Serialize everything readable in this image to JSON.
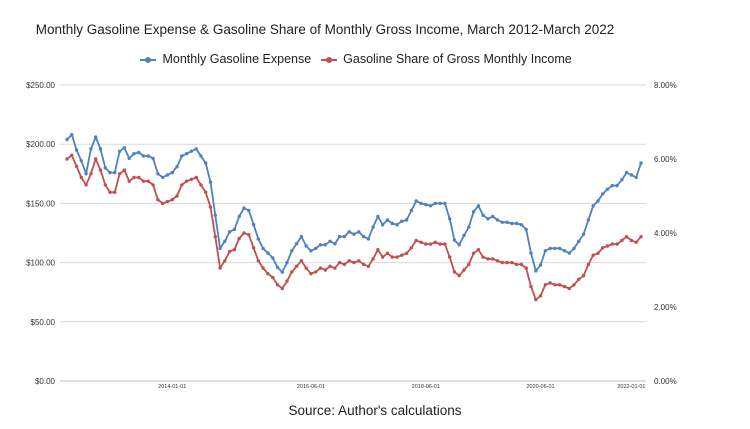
{
  "chart_data": {
    "type": "line",
    "title": "Monthly Gasoline Expense & Gasoline Share of Monthly Gross Income, March 2012-March 2022",
    "source": "Source: Author's calculations",
    "y_left_ticks": [
      "$0.00",
      "$50.00",
      "$100.00",
      "$150.00",
      "$200.00",
      "$250.00"
    ],
    "y_right_ticks": [
      "0.00%",
      "2.00%",
      "4.00%",
      "6.00%",
      "8.00%"
    ],
    "ylim_left": [
      0,
      250
    ],
    "ylim_right": [
      0,
      8
    ],
    "x_ticks": [
      {
        "label": "2014-01-01",
        "index": 22
      },
      {
        "label": "2016-06-01",
        "index": 51
      },
      {
        "label": "2018-06-01",
        "index": 75
      },
      {
        "label": "2020-06-01",
        "index": 99
      },
      {
        "label": "2022-01-01",
        "index": 118
      }
    ],
    "x_range": {
      "start": "2012-03",
      "end": "2022-03",
      "count": 121
    },
    "legend_position": "top",
    "grid": true,
    "series": [
      {
        "name": "Monthly Gasoline Expense",
        "axis": "left",
        "color": "#4f81bd",
        "values": [
          204,
          208,
          195,
          186,
          175,
          196,
          206,
          196,
          180,
          176,
          176,
          194,
          197,
          188,
          192,
          193,
          190,
          190,
          188,
          175,
          172,
          174,
          176,
          181,
          190,
          192,
          194,
          196,
          190,
          184,
          168,
          140,
          112,
          118,
          126,
          128,
          139,
          146,
          144,
          132,
          120,
          112,
          108,
          104,
          96,
          92,
          100,
          110,
          116,
          122,
          114,
          110,
          112,
          115,
          115,
          118,
          116,
          122,
          122,
          126,
          124,
          126,
          122,
          120,
          130,
          139,
          132,
          136,
          133,
          132,
          135,
          136,
          144,
          152,
          150,
          149,
          148,
          150,
          150,
          150,
          137,
          119,
          115,
          123,
          130,
          143,
          148,
          140,
          137,
          139,
          136,
          134,
          134,
          133,
          133,
          132,
          128,
          108,
          93,
          98,
          110,
          112,
          112,
          112,
          110,
          108,
          112,
          118,
          124,
          136,
          148,
          152,
          158,
          162,
          165,
          165,
          170,
          176,
          174,
          172,
          184
        ]
      },
      {
        "name": "Gasoline Share of Gross Monthly Income",
        "axis": "right",
        "color": "#c0504d",
        "values": [
          6.0,
          6.1,
          5.8,
          5.5,
          5.3,
          5.6,
          6.0,
          5.7,
          5.3,
          5.1,
          5.1,
          5.6,
          5.7,
          5.4,
          5.5,
          5.5,
          5.4,
          5.4,
          5.3,
          4.9,
          4.8,
          4.85,
          4.9,
          5.0,
          5.3,
          5.4,
          5.45,
          5.5,
          5.3,
          5.1,
          4.7,
          3.9,
          3.05,
          3.25,
          3.5,
          3.55,
          3.85,
          4.0,
          3.95,
          3.6,
          3.25,
          3.05,
          2.9,
          2.8,
          2.6,
          2.5,
          2.7,
          2.95,
          3.1,
          3.25,
          3.05,
          2.9,
          2.95,
          3.05,
          3.0,
          3.1,
          3.05,
          3.2,
          3.15,
          3.25,
          3.2,
          3.25,
          3.15,
          3.1,
          3.3,
          3.55,
          3.35,
          3.45,
          3.35,
          3.35,
          3.4,
          3.45,
          3.6,
          3.8,
          3.75,
          3.7,
          3.7,
          3.75,
          3.7,
          3.7,
          3.35,
          2.95,
          2.85,
          3.0,
          3.15,
          3.45,
          3.55,
          3.35,
          3.3,
          3.3,
          3.25,
          3.2,
          3.2,
          3.2,
          3.15,
          3.15,
          3.05,
          2.55,
          2.2,
          2.3,
          2.6,
          2.65,
          2.6,
          2.6,
          2.55,
          2.5,
          2.6,
          2.75,
          2.85,
          3.15,
          3.4,
          3.45,
          3.6,
          3.65,
          3.7,
          3.7,
          3.8,
          3.9,
          3.8,
          3.75,
          3.9
        ]
      }
    ]
  }
}
